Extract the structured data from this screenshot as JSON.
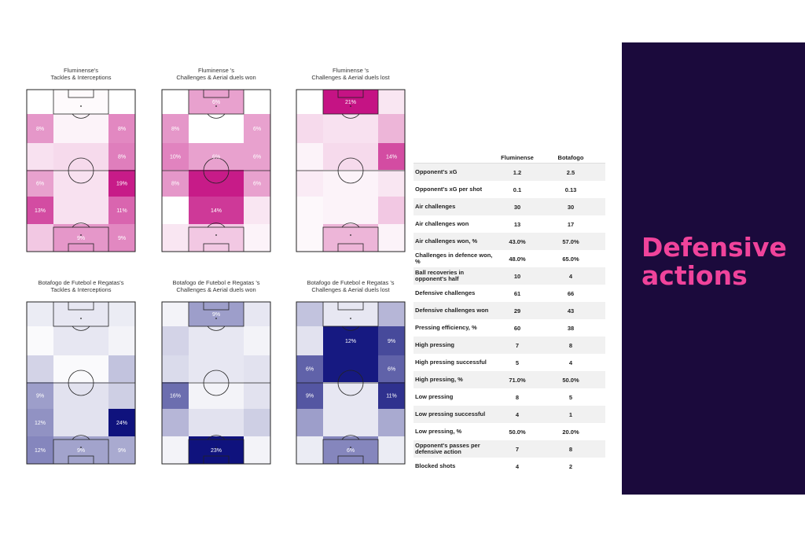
{
  "colors": {
    "pink_base": "#c2077e",
    "blue_base": "#0a0d7a",
    "panel_bg": "#1b0a3c",
    "panel_title": "#f0439b"
  },
  "panel": {
    "title": "Defensive\nactions"
  },
  "chart_data": {
    "type": "heatmap",
    "heatmaps": [
      {
        "title": "Fluminense's\nTackles & Interceptions",
        "color": "pink",
        "labels": [
          [
            "",
            "",
            ""
          ],
          [
            "8%",
            "",
            "8%"
          ],
          [
            "",
            "",
            "8%"
          ],
          [
            "6%",
            "",
            "19%"
          ],
          [
            "13%",
            "",
            "11%"
          ],
          [
            "",
            "9%",
            "9%"
          ]
        ],
        "intensity": [
          [
            0,
            0.02,
            0
          ],
          [
            0.42,
            0.05,
            0.48
          ],
          [
            0.12,
            0.15,
            0.52
          ],
          [
            0.38,
            0.12,
            0.92
          ],
          [
            0.72,
            0.12,
            0.62
          ],
          [
            0.22,
            0.42,
            0.48
          ]
        ]
      },
      {
        "title": "Fluminense 's\nChallenges & Aerial duels won",
        "color": "pink",
        "labels": [
          [
            "",
            "6%",
            ""
          ],
          [
            "8%",
            "",
            "6%"
          ],
          [
            "10%",
            "6%",
            "6%"
          ],
          [
            "8%",
            "",
            "6%"
          ],
          [
            "",
            "14%",
            ""
          ],
          [
            "",
            "",
            ""
          ]
        ],
        "intensity": [
          [
            0,
            0.38,
            0
          ],
          [
            0.42,
            0,
            0.38
          ],
          [
            0.5,
            0.38,
            0.38
          ],
          [
            0.42,
            0.92,
            0.38
          ],
          [
            0,
            0.8,
            0.1
          ],
          [
            0.1,
            0.22,
            0.05
          ]
        ]
      },
      {
        "title": "Fluminense 's\nChallenges & Aerial duels lost",
        "color": "pink",
        "labels": [
          [
            "",
            "21%",
            ""
          ],
          [
            "",
            "",
            ""
          ],
          [
            "",
            "",
            "14%"
          ],
          [
            "",
            "",
            ""
          ],
          [
            "",
            "",
            ""
          ],
          [
            "",
            "",
            ""
          ]
        ],
        "intensity": [
          [
            0,
            0.95,
            0.1
          ],
          [
            0.15,
            0.12,
            0.3
          ],
          [
            0.05,
            0.15,
            0.72
          ],
          [
            0.08,
            0.05,
            0.1
          ],
          [
            0.03,
            0.05,
            0.22
          ],
          [
            0.03,
            0.3,
            0.05
          ]
        ]
      },
      {
        "title": "Botafogo de Futebol e Regatas's\nTackles & Interceptions",
        "color": "blue",
        "labels": [
          [
            "",
            "",
            ""
          ],
          [
            "",
            "",
            ""
          ],
          [
            "",
            "",
            ""
          ],
          [
            "9%",
            "",
            ""
          ],
          [
            "12%",
            "",
            "24%"
          ],
          [
            "12%",
            "9%",
            "9%"
          ]
        ],
        "intensity": [
          [
            0.08,
            0.1,
            0.08
          ],
          [
            0.02,
            0.1,
            0.05
          ],
          [
            0.18,
            0.02,
            0.25
          ],
          [
            0.4,
            0.12,
            0.2
          ],
          [
            0.45,
            0.12,
            0.98
          ],
          [
            0.5,
            0.38,
            0.35
          ]
        ]
      },
      {
        "title": "Botafogo de Futebol e Regatas 's\nChallenges & Aerial duels won",
        "color": "blue",
        "labels": [
          [
            "",
            "9%",
            ""
          ],
          [
            "",
            "",
            ""
          ],
          [
            "",
            "",
            ""
          ],
          [
            "16%",
            "",
            ""
          ],
          [
            "",
            "",
            ""
          ],
          [
            "",
            "23%",
            ""
          ]
        ],
        "intensity": [
          [
            0.05,
            0.4,
            0.1
          ],
          [
            0.18,
            0.1,
            0.05
          ],
          [
            0.15,
            0.1,
            0.12
          ],
          [
            0.6,
            0.05,
            0.12
          ],
          [
            0.3,
            0.12,
            0.2
          ],
          [
            0.05,
            0.98,
            0.05
          ]
        ]
      },
      {
        "title": "Botafogo de Futebol e Regatas 's\nChallenges & Aerial duels lost",
        "color": "blue",
        "labels": [
          [
            "",
            "",
            ""
          ],
          [
            "",
            "12%",
            "9%"
          ],
          [
            "6%",
            "",
            "6%"
          ],
          [
            "9%",
            "",
            "11%"
          ],
          [
            "",
            "",
            ""
          ],
          [
            "",
            "6%",
            ""
          ]
        ],
        "intensity": [
          [
            0.25,
            0.1,
            0.3
          ],
          [
            0.12,
            0.95,
            0.75
          ],
          [
            0.65,
            0.95,
            0.65
          ],
          [
            0.7,
            0.1,
            0.85
          ],
          [
            0.4,
            0.1,
            0.35
          ],
          [
            0.08,
            0.5,
            0.08
          ]
        ]
      }
    ]
  },
  "stats": {
    "teams": [
      "Fluminense",
      "Botafogo"
    ],
    "rows": [
      {
        "label": "Opponent's xG",
        "a": "1.2",
        "b": "2.5"
      },
      {
        "label": "Opponent's xG per shot",
        "a": "0.1",
        "b": "0.13"
      },
      {
        "label": "Air challenges",
        "a": "30",
        "b": "30"
      },
      {
        "label": "Air challenges won",
        "a": "13",
        "b": "17"
      },
      {
        "label": "Air challenges won, %",
        "a": "43.0%",
        "b": "57.0%"
      },
      {
        "label": "Challenges in defence won, %",
        "a": "48.0%",
        "b": "65.0%"
      },
      {
        "label": "Ball recoveries in opponent's half",
        "a": "10",
        "b": "4"
      },
      {
        "label": "Defensive challenges",
        "a": "61",
        "b": "66"
      },
      {
        "label": "Defensive challenges won",
        "a": "29",
        "b": "43"
      },
      {
        "label": "Pressing efficiency, %",
        "a": "60",
        "b": "38"
      },
      {
        "label": "High pressing",
        "a": "7",
        "b": "8"
      },
      {
        "label": "High pressing successful",
        "a": "5",
        "b": "4"
      },
      {
        "label": "High pressing, %",
        "a": "71.0%",
        "b": "50.0%"
      },
      {
        "label": "Low pressing",
        "a": "8",
        "b": "5"
      },
      {
        "label": "Low pressing successful",
        "a": "4",
        "b": "1"
      },
      {
        "label": "Low pressing, %",
        "a": "50.0%",
        "b": "20.0%"
      },
      {
        "label": "Opponent's passes per defensive action",
        "a": "7",
        "b": "8"
      },
      {
        "label": "Blocked shots",
        "a": "4",
        "b": "2"
      }
    ]
  }
}
